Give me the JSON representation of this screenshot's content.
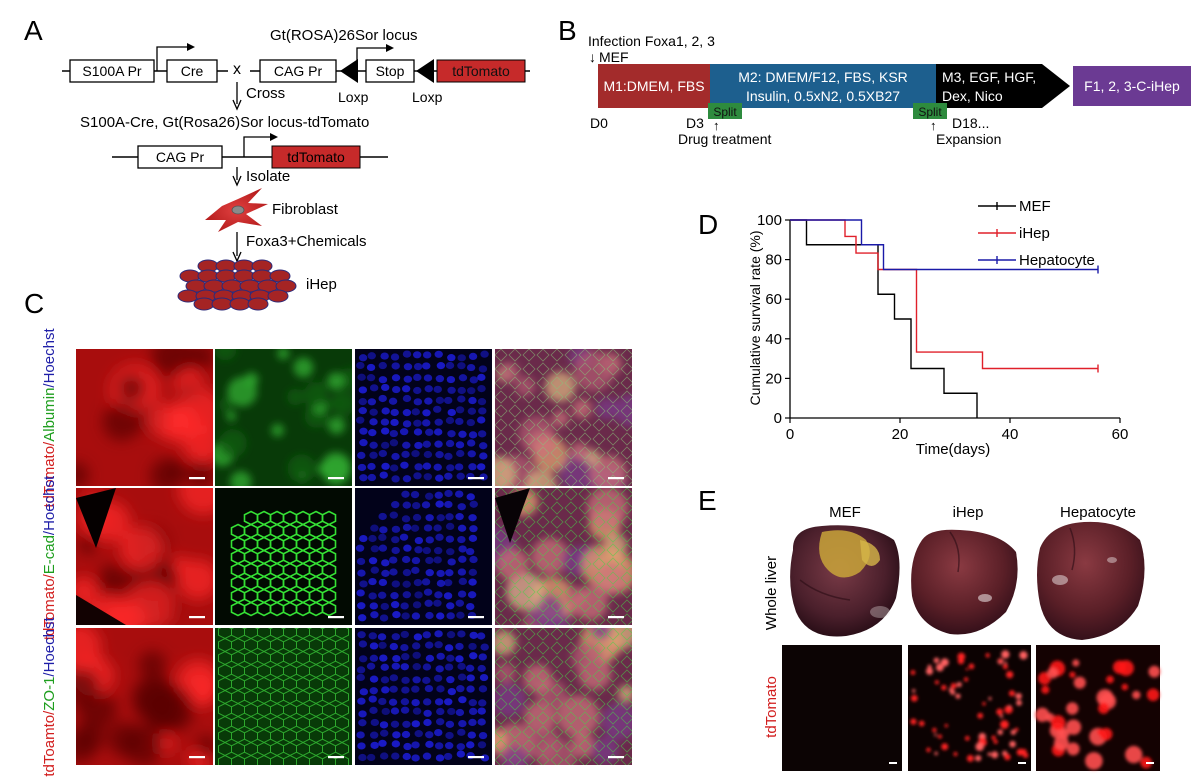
{
  "panels": {
    "a": "A",
    "b": "B",
    "c": "C",
    "d": "D",
    "e": "E"
  },
  "panel_a": {
    "s100a_pr": "S100A Pr",
    "cre": "Cre",
    "cross_symbol": "x",
    "locus_label": "Gt(ROSA)26Sor locus",
    "cag_pr": "CAG Pr",
    "stop": "Stop",
    "tdtomato": "tdTomato",
    "loxp": "Loxp",
    "cross": "Cross",
    "offspring": "S100A-Cre, Gt(Rosa26)Sor locus-tdTomato",
    "isolate": "Isolate",
    "fibroblast": "Fibroblast",
    "induction": "Foxa3+Chemicals",
    "ihep": "iHep"
  },
  "panel_b": {
    "infection": "Infection Foxa1, 2, 3",
    "mef": "MEF",
    "m1": "M1:DMEM, FBS",
    "m2_line1": "M2: DMEM/F12, FBS, KSR",
    "m2_line2": "Insulin, 0.5xN2, 0.5XB27",
    "m3_line1": "M3, EGF, HGF,",
    "m3_line2": "Dex, Nico",
    "final": "F1, 2, 3-C-iHep",
    "split": "Split",
    "d0": "D0",
    "d3": "D3",
    "d18": "D18...",
    "drug": "Drug treatment",
    "expansion": "Expansion",
    "colors": {
      "m1": "#a32b2b",
      "m2": "#1d5f8e",
      "m3": "#000000",
      "final": "#6b3a93",
      "split": "#2e8b3e"
    }
  },
  "panel_c": {
    "rows": [
      {
        "prefix": "tdTomato/",
        "middle": "Albumin",
        "suffix": "/Hoechst",
        "middle_color": "#1e9e1e"
      },
      {
        "prefix": "tdTomato/",
        "middle": "E-cad",
        "suffix": "/Hoechst",
        "middle_color": "#1e9e1e"
      },
      {
        "prefix": "tdToamto/",
        "middle": "ZO-1",
        "suffix": "/Hoechst",
        "middle_color": "#1e9e1e"
      }
    ]
  },
  "chart_data": {
    "type": "line",
    "xlabel": "Time(days)",
    "ylabel": "Cumulative survival rate (%)",
    "xlim": [
      0,
      60
    ],
    "ylim": [
      0,
      100
    ],
    "xticks": [
      0,
      20,
      40,
      60
    ],
    "yticks": [
      0,
      20,
      40,
      60,
      80,
      100
    ],
    "legend_position": "top-right",
    "series": [
      {
        "name": "MEF",
        "color": "#000000",
        "x": [
          0,
          3,
          16,
          19,
          22,
          25,
          28,
          34
        ],
        "y": [
          100,
          87.5,
          62.5,
          50,
          25,
          25,
          12.5,
          0
        ]
      },
      {
        "name": "iHep",
        "color": "#e0202a",
        "x": [
          0,
          10,
          12,
          16,
          22,
          23,
          35,
          56
        ],
        "y": [
          100,
          91.7,
          83.3,
          75,
          75,
          33.3,
          25,
          25
        ]
      },
      {
        "name": "Hepatocyte",
        "color": "#1a1aa8",
        "x": [
          0,
          13,
          17,
          56
        ],
        "y": [
          100,
          87.5,
          75,
          75
        ]
      }
    ]
  },
  "panel_e": {
    "columns": [
      "MEF",
      "iHep",
      "Hepatocyte"
    ],
    "row_whole": "Whole liver",
    "row_tdtomato": "tdTomato"
  }
}
